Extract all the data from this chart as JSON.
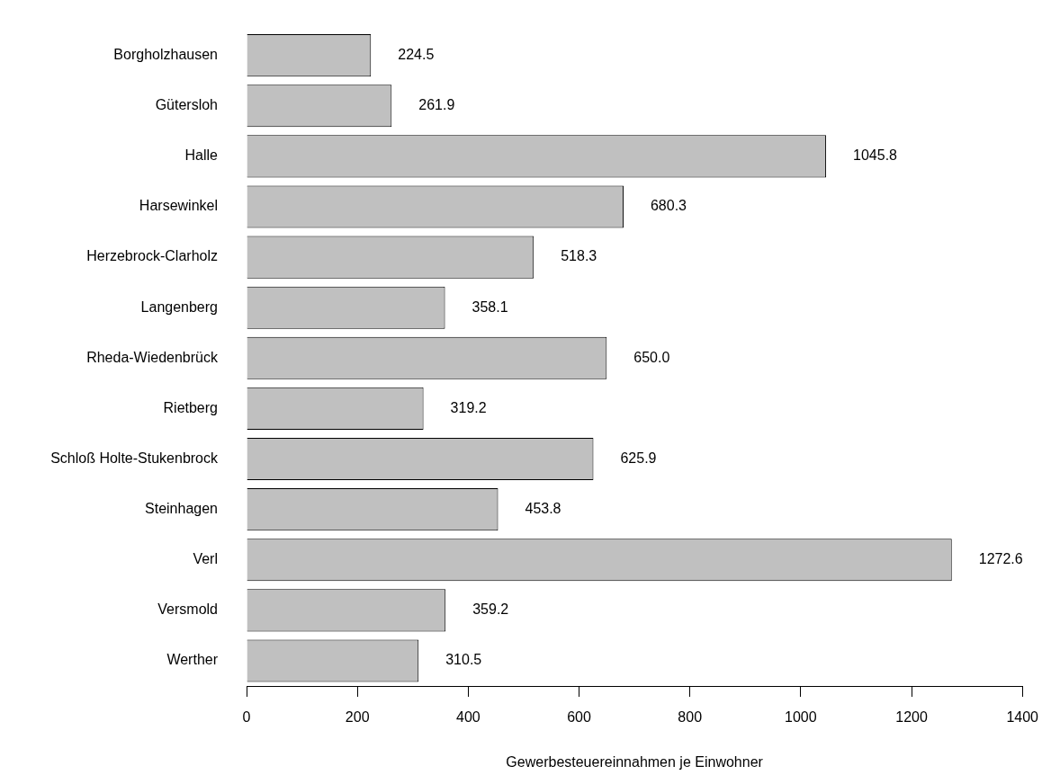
{
  "chart_data": {
    "type": "bar",
    "orientation": "horizontal",
    "xlabel": "Gewerbesteuereinnahmen je Einwohner",
    "categories": [
      "Borgholzhausen",
      "Gütersloh",
      "Halle",
      "Harsewinkel",
      "Herzebrock-Clarholz",
      "Langenberg",
      "Rheda-Wiedenbrück",
      "Rietberg",
      "Schloß Holte-Stukenbrock",
      "Steinhagen",
      "Verl",
      "Versmold",
      "Werther"
    ],
    "values": [
      224.5,
      261.9,
      1045.8,
      680.3,
      518.3,
      358.1,
      650.0,
      319.2,
      625.9,
      453.8,
      1272.6,
      359.2,
      310.5
    ],
    "value_labels": [
      "224.5",
      "261.9",
      "1045.8",
      "680.3",
      "518.3",
      "358.1",
      "650.0",
      "319.2",
      "625.9",
      "453.8",
      "1272.6",
      "359.2",
      "310.5"
    ],
    "color": "#c0c0c0",
    "xlim": [
      0,
      1400
    ],
    "xticks": [
      0,
      200,
      400,
      600,
      800,
      1000,
      1200,
      1400
    ],
    "grid": false,
    "legend": false
  }
}
